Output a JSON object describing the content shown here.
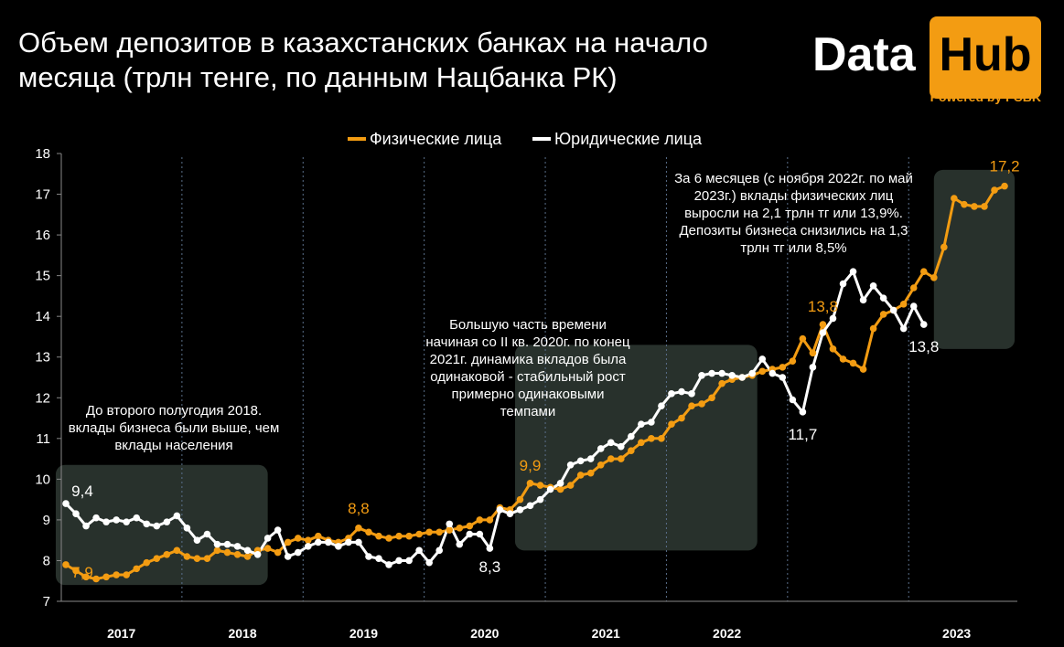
{
  "title": "Объем депозитов в казахстанских банках на начало месяца (трлн тенге, по данным Нацбанка РК)",
  "logo": {
    "data": "Data",
    "hub": "Hub",
    "powered": "Powered by FCBK"
  },
  "colors": {
    "individuals": "#f39c12",
    "business": "#ffffff",
    "highlight": "#2f3a34",
    "background": "#000000"
  },
  "annotations": {
    "a1": "До второго полугодия 2018. вклады бизнеса были выше, чем вклады населения",
    "a2": "Большую часть времени начиная со II кв. 2020г. по конец 2021г. динамика вкладов была одинаковой - стабильный рост примерно одинаковыми темпами",
    "a3": "За 6 месяцев (с ноября 2022г. по май 2023г.) вклады физических лиц выросли на 2,1 трлн тг или 13,9%. Депозиты бизнеса снизились на 1,3 трлн тг или 8,5%"
  },
  "chart_data": {
    "type": "line",
    "title": "Объем депозитов в казахстанских банках на начало месяца (трлн тенге, по данным Нацбанка РК)",
    "ylim": [
      7,
      18
    ],
    "yticks": [
      "7",
      "8",
      "9",
      "10",
      "11",
      "12",
      "13",
      "14",
      "15",
      "16",
      "17",
      "18"
    ],
    "grid": false,
    "legend": "top-center",
    "years": [
      "2017",
      "2018",
      "2019",
      "2020",
      "2021",
      "2022",
      "2023"
    ],
    "x_start": "2017-01",
    "series": [
      {
        "name": "Физические лица",
        "color": "#f39c12",
        "values": [
          7.9,
          7.75,
          7.6,
          7.55,
          7.6,
          7.65,
          7.65,
          7.8,
          7.95,
          8.05,
          8.15,
          8.25,
          8.1,
          8.05,
          8.05,
          8.25,
          8.2,
          8.15,
          8.1,
          8.25,
          8.3,
          8.2,
          8.45,
          8.55,
          8.5,
          8.6,
          8.5,
          8.45,
          8.55,
          8.8,
          8.7,
          8.6,
          8.55,
          8.6,
          8.6,
          8.65,
          8.7,
          8.7,
          8.75,
          8.8,
          8.85,
          9.0,
          9.0,
          9.3,
          9.25,
          9.5,
          9.9,
          9.85,
          9.8,
          9.75,
          9.85,
          10.1,
          10.15,
          10.35,
          10.5,
          10.5,
          10.7,
          10.9,
          11.0,
          11.0,
          11.35,
          11.5,
          11.8,
          11.85,
          12.0,
          12.35,
          12.45,
          12.5,
          12.55,
          12.65,
          12.7,
          12.75,
          12.9,
          13.45,
          13.1,
          13.8,
          13.2,
          12.95,
          12.85,
          12.7,
          13.7,
          14.05,
          14.15,
          14.3,
          14.7,
          15.1,
          14.95,
          15.7,
          16.9,
          16.75,
          16.7,
          16.7,
          17.1,
          17.2
        ]
      },
      {
        "name": "Юридические лица",
        "color": "#ffffff",
        "values": [
          9.4,
          9.15,
          8.85,
          9.05,
          8.95,
          9.0,
          8.95,
          9.05,
          8.9,
          8.85,
          8.95,
          9.1,
          8.8,
          8.5,
          8.65,
          8.4,
          8.4,
          8.35,
          8.25,
          8.15,
          8.55,
          8.75,
          8.1,
          8.2,
          8.35,
          8.45,
          8.45,
          8.35,
          8.45,
          8.45,
          8.1,
          8.05,
          7.9,
          8.0,
          8.0,
          8.25,
          7.95,
          8.25,
          8.9,
          8.4,
          8.65,
          8.65,
          8.3,
          9.25,
          9.15,
          9.25,
          9.35,
          9.5,
          9.75,
          9.9,
          10.35,
          10.45,
          10.5,
          10.75,
          10.9,
          10.8,
          11.05,
          11.35,
          11.4,
          11.8,
          12.1,
          12.15,
          12.1,
          12.55,
          12.6,
          12.6,
          12.55,
          12.5,
          12.6,
          12.95,
          12.6,
          12.5,
          11.95,
          11.65,
          12.75,
          13.6,
          13.95,
          14.8,
          15.1,
          14.4,
          14.75,
          14.45,
          14.15,
          13.7,
          14.25,
          13.8
        ]
      }
    ],
    "data_labels": [
      {
        "series": 0,
        "index": 0,
        "text": "7,9"
      },
      {
        "series": 0,
        "index": 29,
        "text": "8,8"
      },
      {
        "series": 0,
        "index": 46,
        "text": "9,9"
      },
      {
        "series": 0,
        "index": 75,
        "text": "13,8"
      },
      {
        "series": 0,
        "index": 93,
        "text": "17,2"
      },
      {
        "series": 1,
        "index": 0,
        "text": "9,4"
      },
      {
        "series": 1,
        "index": 42,
        "text": "8,3"
      },
      {
        "series": 1,
        "index": 73,
        "text": "11,7"
      },
      {
        "series": 1,
        "index": 85,
        "text": "13,8"
      }
    ]
  }
}
